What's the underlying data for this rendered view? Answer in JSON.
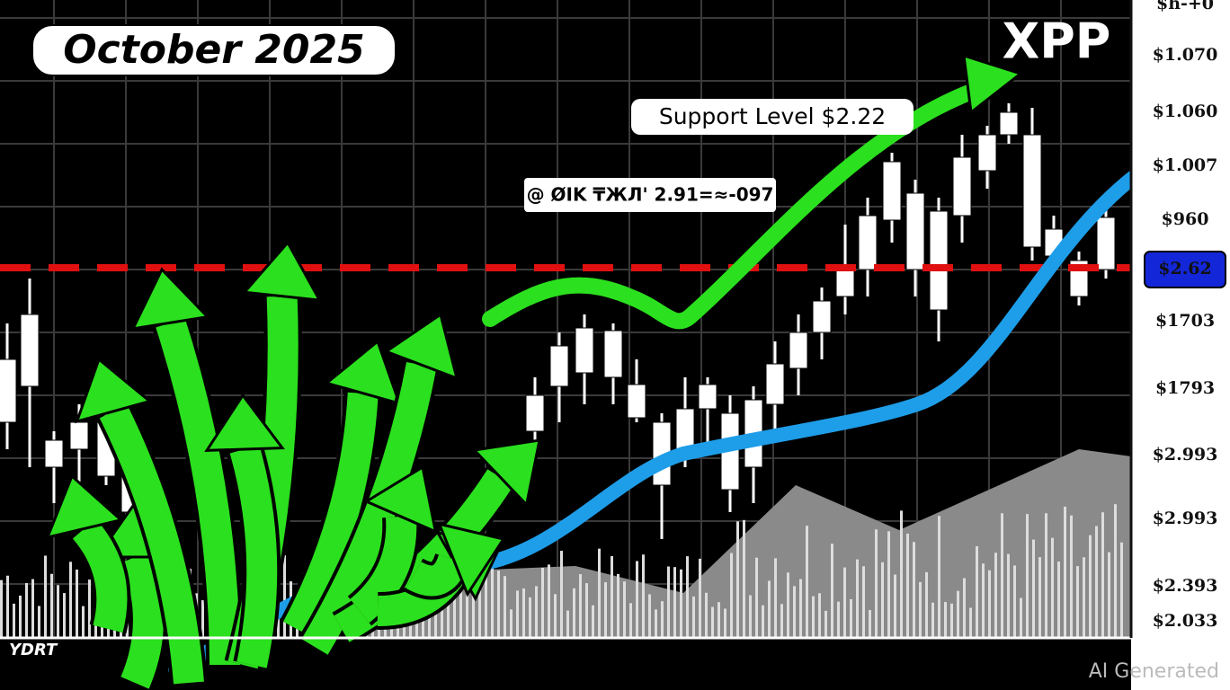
{
  "title": "October 2025",
  "ticker": "XPP",
  "annotations": {
    "support": "Support Level $2.22",
    "note": "@ ØIK ₸ЖЛ' 2.91=≈-097"
  },
  "axis_labels": [
    "$h-+0",
    "$1.070",
    "$1.060",
    "$1.007",
    "$960",
    "$2.62",
    "$1703",
    "$1793",
    "$2.993",
    "$2.993",
    "$2.393",
    "$2.033"
  ],
  "corner_label": "YDRT",
  "watermark": "AI Generated"
}
